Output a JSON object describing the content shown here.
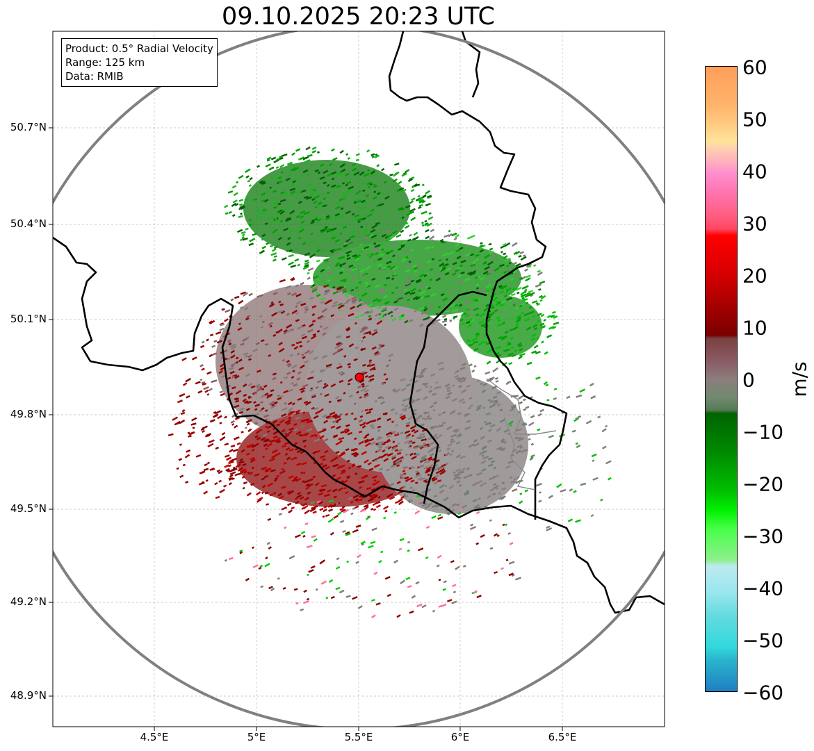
{
  "title": "09.10.2025 20:23 UTC",
  "info": {
    "product": "Product: 0.5° Radial Velocity",
    "range": "Range: 125 km",
    "data": "Data: RMIB"
  },
  "axes": {
    "lat_labels": [
      "50.7°N",
      "50.4°N",
      "50.1°N",
      "49.8°N",
      "49.5°N",
      "49.2°N",
      "48.9°N"
    ],
    "lon_labels": [
      "4.5°E",
      "5°E",
      "5.5°E",
      "6°E",
      "6.5°E"
    ]
  },
  "colorbar": {
    "label": "m/s",
    "ticks": [
      "60",
      "50",
      "40",
      "30",
      "20",
      "10",
      "0",
      "−10",
      "−20",
      "−30",
      "−40",
      "−50",
      "−60"
    ],
    "range": [
      -60,
      60
    ]
  },
  "radar_site": {
    "lon": 5.5,
    "lat": 49.914
  },
  "colors": {
    "inbound_dark": "#006400",
    "inbound": "#00a000",
    "neutral": "#857a7a",
    "outbound": "#8b0000",
    "outbound_bright": "#ff0000",
    "range_ring": "#808080",
    "border": "#000000"
  }
}
